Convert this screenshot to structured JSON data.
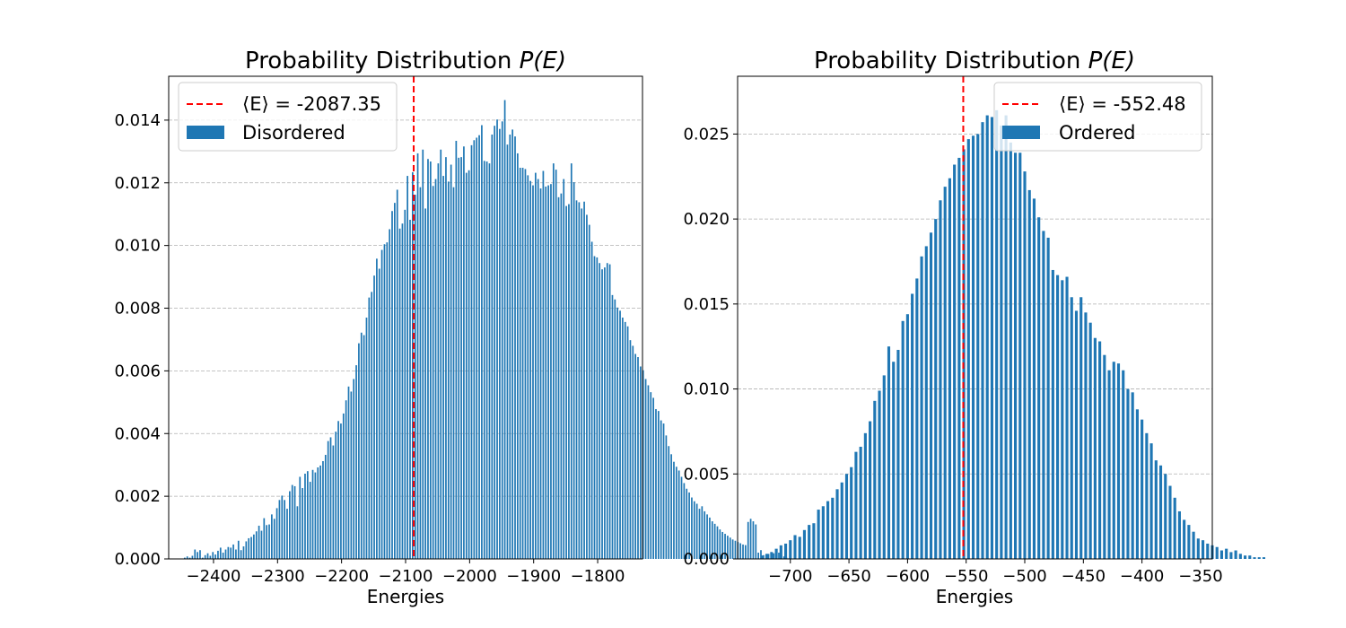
{
  "chart_data": [
    {
      "type": "bar",
      "title": "Probability Distribution P(E)",
      "title_plain": "Probability Distribution ",
      "title_math": "P(E)",
      "xlabel": "Energies",
      "ylabel": "",
      "xlim": [
        -2470,
        -1730
      ],
      "ylim": [
        0,
        0.0154
      ],
      "xticks": [
        -2400,
        -2300,
        -2200,
        -2100,
        -2000,
        -1900,
        -1800
      ],
      "xtick_labels": [
        "−2400",
        "−2300",
        "−2200",
        "−2100",
        "−2000",
        "−1900",
        "−1800"
      ],
      "yticks": [
        0,
        0.002,
        0.004,
        0.006,
        0.008,
        0.01,
        0.012,
        0.014
      ],
      "ytick_labels": [
        "0.000",
        "0.002",
        "0.004",
        "0.006",
        "0.008",
        "0.010",
        "0.012",
        "0.014"
      ],
      "grid": "y dashed",
      "legend_position": "top-left",
      "bar_color": "#1f77b4",
      "mean_line_color": "#ff0000",
      "mean_value": -2087.35,
      "legend": {
        "mean_label": "⟨E⟩ = -2087.35",
        "bar_label": "Disordered"
      },
      "bin_start": -2445,
      "bin_step": 4,
      "values": [
        4e-05,
        8e-05,
        4e-05,
        0.0001,
        0.0003,
        0.00022,
        0.00028,
        4e-05,
        0.00012,
        0.00018,
        0.0001,
        0.00022,
        0.00014,
        0.00026,
        0.00036,
        0.0002,
        0.0003,
        0.00038,
        0.00036,
        0.00046,
        0.0003,
        0.00058,
        0.00028,
        0.0004,
        0.00056,
        0.00066,
        0.0007,
        0.00078,
        0.00088,
        0.00106,
        0.0009,
        0.0013,
        0.00108,
        0.0011,
        0.00142,
        0.00128,
        0.00162,
        0.00188,
        0.00202,
        0.00188,
        0.0016,
        0.00216,
        0.00236,
        0.00232,
        0.00168,
        0.00262,
        0.00226,
        0.00272,
        0.0028,
        0.00246,
        0.00284,
        0.00276,
        0.00292,
        0.00298,
        0.00312,
        0.00332,
        0.00376,
        0.00388,
        0.00362,
        0.00406,
        0.0044,
        0.00432,
        0.00464,
        0.00506,
        0.0055,
        0.00534,
        0.00574,
        0.00618,
        0.00688,
        0.00722,
        0.00714,
        0.0077,
        0.00834,
        0.00852,
        0.00904,
        0.00958,
        0.00926,
        0.00986,
        0.01004,
        0.0101,
        0.01052,
        0.0111,
        0.01136,
        0.01178,
        0.01054,
        0.0107,
        0.01114,
        0.01222,
        0.01082,
        0.01234,
        0.01162,
        0.01294,
        0.01186,
        0.01306,
        0.01118,
        0.01276,
        0.01268,
        0.0119,
        0.01212,
        0.01262,
        0.01306,
        0.01222,
        0.01282,
        0.01204,
        0.01258,
        0.01186,
        0.01334,
        0.0128,
        0.01282,
        0.01316,
        0.01232,
        0.0124,
        0.0132,
        0.01336,
        0.01344,
        0.01352,
        0.01384,
        0.0127,
        0.01268,
        0.01262,
        0.01354,
        0.01382,
        0.01402,
        0.01372,
        0.01396,
        0.01464,
        0.01322,
        0.01354,
        0.0137,
        0.01348,
        0.01294,
        0.01248,
        0.01248,
        0.01244,
        0.01224,
        0.01206,
        0.01192,
        0.01232,
        0.01212,
        0.01182,
        0.01238,
        0.01188,
        0.01192,
        0.01196,
        0.01262,
        0.01242,
        0.01154,
        0.01166,
        0.01212,
        0.01126,
        0.01132,
        0.01262,
        0.01202,
        0.01144,
        0.01138,
        0.01118,
        0.0114,
        0.01098,
        0.01066,
        0.01012,
        0.00966,
        0.00962,
        0.00944,
        0.00924,
        0.0093,
        0.00944,
        0.0094,
        0.00842,
        0.00828,
        0.00802,
        0.00792,
        0.0077,
        0.00756,
        0.00742,
        0.00698,
        0.0068,
        0.00654,
        0.00644,
        0.00614,
        0.00602,
        0.00574,
        0.00554,
        0.00532,
        0.00514,
        0.00478,
        0.00472,
        0.00442,
        0.00432,
        0.00394,
        0.0036,
        0.00334,
        0.0031,
        0.00294,
        0.00282,
        0.00262,
        0.00242,
        0.00224,
        0.00212,
        0.00196,
        0.00184,
        0.00176,
        0.0016,
        0.00168,
        0.00152,
        0.00142,
        0.00132,
        0.0012,
        0.00112,
        0.00104,
        0.00094,
        0.00086,
        0.0008,
        0.00074,
        0.00068,
        0.00062,
        0.00058,
        0.00054,
        0.0005,
        0.00046,
        0.00044,
        0.00118,
        0.00128,
        0.0012,
        0.0011,
        0.0002,
        0.00028,
        0.00012,
        0.00014,
        0.00016,
        0.00022,
        0.00018,
        0.0001,
        0.0002,
        0.00012,
        8e-05,
        4e-05,
        2e-05
      ]
    },
    {
      "type": "bar",
      "title": "Probability Distribution P(E)",
      "title_plain": "Probability Distribution ",
      "title_math": "P(E)",
      "xlabel": "Energies",
      "ylabel": "",
      "xlim": [
        -745,
        -340
      ],
      "ylim": [
        0,
        0.0284
      ],
      "xticks": [
        -700,
        -650,
        -600,
        -550,
        -500,
        -450,
        -400,
        -350
      ],
      "xtick_labels": [
        "−700",
        "−650",
        "−600",
        "−550",
        "−500",
        "−450",
        "−400",
        "−350"
      ],
      "yticks": [
        0,
        0.005,
        0.01,
        0.015,
        0.02,
        0.025
      ],
      "ytick_labels": [
        "0.000",
        "0.005",
        "0.010",
        "0.015",
        "0.020",
        "0.025"
      ],
      "grid": "y dashed",
      "legend_position": "top-right",
      "bar_color": "#1f77b4",
      "mean_line_color": "#ff0000",
      "mean_value": -552.48,
      "legend": {
        "mean_label": "⟨E⟩ = -552.48",
        "bar_label": "Ordered"
      },
      "bin_start": -724,
      "bin_step": 4,
      "values": [
        0.0002,
        0.0003,
        0.0004,
        0.0006,
        0.0008,
        0.0009,
        0.0011,
        0.0014,
        0.0013,
        0.0017,
        0.002,
        0.0021,
        0.0029,
        0.0031,
        0.0034,
        0.0036,
        0.0041,
        0.0045,
        0.005,
        0.0054,
        0.0063,
        0.0066,
        0.0074,
        0.0081,
        0.0093,
        0.0099,
        0.0108,
        0.0125,
        0.0116,
        0.0123,
        0.014,
        0.0144,
        0.0156,
        0.0165,
        0.0178,
        0.0184,
        0.0192,
        0.02,
        0.0211,
        0.0219,
        0.0224,
        0.0232,
        0.0236,
        0.0241,
        0.0247,
        0.0249,
        0.025,
        0.0257,
        0.0261,
        0.026,
        0.0264,
        0.0255,
        0.0261,
        0.0245,
        0.0239,
        0.0239,
        0.0228,
        0.0217,
        0.0212,
        0.0201,
        0.0193,
        0.0189,
        0.017,
        0.0167,
        0.0164,
        0.0166,
        0.0154,
        0.0146,
        0.0154,
        0.0145,
        0.0139,
        0.013,
        0.0128,
        0.012,
        0.0111,
        0.0116,
        0.0115,
        0.0111,
        0.01,
        0.0098,
        0.0088,
        0.0082,
        0.0074,
        0.0068,
        0.0058,
        0.0055,
        0.005,
        0.0043,
        0.0036,
        0.0028,
        0.0023,
        0.002,
        0.0016,
        0.0012,
        0.0011,
        0.0009,
        0.0008,
        0.0007,
        0.0005,
        0.0006,
        0.0004,
        0.0005,
        0.0003,
        0.0002,
        0.0002,
        0.0001,
        0.0001,
        0.0001
      ]
    }
  ]
}
